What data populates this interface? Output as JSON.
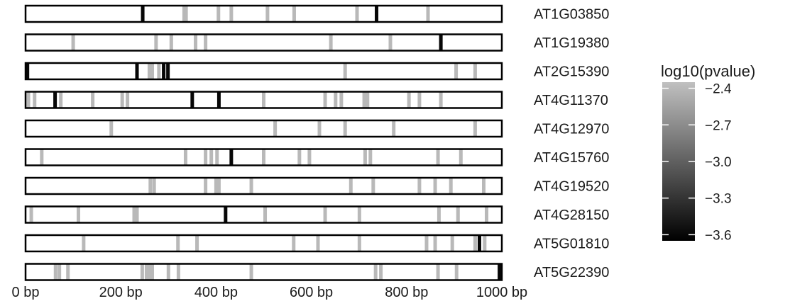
{
  "chart_data": {
    "type": "heatmap",
    "x_unit": "bp",
    "x_range": [
      0,
      1000
    ],
    "x_ticks": [
      {
        "value": 0,
        "label": "0 bp"
      },
      {
        "value": 200,
        "label": "200 bp"
      },
      {
        "value": 400,
        "label": "400 bp"
      },
      {
        "value": 600,
        "label": "600 bp"
      },
      {
        "value": 800,
        "label": "800 bp"
      },
      {
        "value": 1000,
        "label": "1000 bp"
      }
    ],
    "legend": {
      "title": "log10(pvalue)",
      "placement": "right",
      "range": [
        -3.65,
        -2.35
      ],
      "ticks": [
        {
          "value": -2.4,
          "label": "−2.4"
        },
        {
          "value": -2.7,
          "label": "−2.7"
        },
        {
          "value": -3.0,
          "label": "−3.0"
        },
        {
          "value": -3.3,
          "label": "−3.3"
        },
        {
          "value": -3.6,
          "label": "−3.6"
        }
      ],
      "color_high": "#c0c0c0",
      "color_low": "#000000"
    },
    "genes": [
      {
        "name": "AT1G03850",
        "marks": [
          {
            "pos": 246,
            "value": -3.6
          },
          {
            "pos": 333,
            "value": -2.4
          },
          {
            "pos": 337,
            "value": -2.4
          },
          {
            "pos": 405,
            "value": -2.4
          },
          {
            "pos": 432,
            "value": -2.4
          },
          {
            "pos": 508,
            "value": -2.4
          },
          {
            "pos": 564,
            "value": -2.4
          },
          {
            "pos": 696,
            "value": -2.4
          },
          {
            "pos": 737,
            "value": -3.6
          },
          {
            "pos": 845,
            "value": -2.4
          }
        ]
      },
      {
        "name": "AT1G19380",
        "marks": [
          {
            "pos": 100,
            "value": -2.4
          },
          {
            "pos": 274,
            "value": -2.4
          },
          {
            "pos": 306,
            "value": -2.4
          },
          {
            "pos": 357,
            "value": -2.4
          },
          {
            "pos": 378,
            "value": -2.4
          },
          {
            "pos": 641,
            "value": -2.4
          },
          {
            "pos": 766,
            "value": -2.4
          },
          {
            "pos": 872,
            "value": -3.6
          }
        ]
      },
      {
        "name": "AT2G15390",
        "marks": [
          {
            "pos": 4,
            "value": -3.6
          },
          {
            "pos": 234,
            "value": -3.6
          },
          {
            "pos": 260,
            "value": -2.4
          },
          {
            "pos": 266,
            "value": -2.4
          },
          {
            "pos": 280,
            "value": -2.4
          },
          {
            "pos": 290,
            "value": -3.6
          },
          {
            "pos": 299,
            "value": -3.6
          },
          {
            "pos": 671,
            "value": -2.4
          },
          {
            "pos": 904,
            "value": -2.4
          },
          {
            "pos": 944,
            "value": -2.4
          }
        ]
      },
      {
        "name": "AT4G11370",
        "marks": [
          {
            "pos": 6,
            "value": -2.4
          },
          {
            "pos": 19,
            "value": -2.4
          },
          {
            "pos": 62,
            "value": -3.6
          },
          {
            "pos": 74,
            "value": -2.4
          },
          {
            "pos": 141,
            "value": -2.4
          },
          {
            "pos": 203,
            "value": -2.4
          },
          {
            "pos": 214,
            "value": -2.4
          },
          {
            "pos": 350,
            "value": -3.6
          },
          {
            "pos": 406,
            "value": -3.6
          },
          {
            "pos": 500,
            "value": -2.4
          },
          {
            "pos": 629,
            "value": -2.4
          },
          {
            "pos": 651,
            "value": -2.4
          },
          {
            "pos": 663,
            "value": -2.4
          },
          {
            "pos": 711,
            "value": -2.4
          },
          {
            "pos": 718,
            "value": -2.4
          },
          {
            "pos": 805,
            "value": -2.4
          },
          {
            "pos": 827,
            "value": -2.4
          },
          {
            "pos": 872,
            "value": -2.4
          }
        ]
      },
      {
        "name": "AT4G12970",
        "marks": [
          {
            "pos": 180,
            "value": -2.4
          },
          {
            "pos": 524,
            "value": -2.4
          },
          {
            "pos": 617,
            "value": -2.4
          },
          {
            "pos": 671,
            "value": -2.4
          },
          {
            "pos": 773,
            "value": -2.4
          },
          {
            "pos": 944,
            "value": -2.4
          }
        ]
      },
      {
        "name": "AT4G15760",
        "marks": [
          {
            "pos": 34,
            "value": -2.4
          },
          {
            "pos": 336,
            "value": -2.4
          },
          {
            "pos": 378,
            "value": -2.4
          },
          {
            "pos": 390,
            "value": -2.4
          },
          {
            "pos": 402,
            "value": -2.4
          },
          {
            "pos": 432,
            "value": -3.6
          },
          {
            "pos": 500,
            "value": -2.4
          },
          {
            "pos": 575,
            "value": -2.4
          },
          {
            "pos": 596,
            "value": -2.4
          },
          {
            "pos": 713,
            "value": -2.4
          },
          {
            "pos": 724,
            "value": -2.4
          },
          {
            "pos": 866,
            "value": -2.4
          },
          {
            "pos": 914,
            "value": -2.4
          }
        ]
      },
      {
        "name": "AT4G19520",
        "marks": [
          {
            "pos": 262,
            "value": -2.4
          },
          {
            "pos": 270,
            "value": -2.4
          },
          {
            "pos": 378,
            "value": -2.4
          },
          {
            "pos": 400,
            "value": -2.4
          },
          {
            "pos": 406,
            "value": -2.4
          },
          {
            "pos": 474,
            "value": -2.4
          },
          {
            "pos": 683,
            "value": -2.4
          },
          {
            "pos": 730,
            "value": -2.4
          },
          {
            "pos": 827,
            "value": -2.4
          },
          {
            "pos": 860,
            "value": -2.4
          },
          {
            "pos": 893,
            "value": -2.4
          },
          {
            "pos": 962,
            "value": -2.4
          }
        ]
      },
      {
        "name": "AT4G28150",
        "marks": [
          {
            "pos": 12,
            "value": -2.4
          },
          {
            "pos": 111,
            "value": -2.4
          },
          {
            "pos": 228,
            "value": -2.4
          },
          {
            "pos": 234,
            "value": -2.4
          },
          {
            "pos": 420,
            "value": -3.6
          },
          {
            "pos": 503,
            "value": -2.4
          },
          {
            "pos": 629,
            "value": -2.4
          },
          {
            "pos": 701,
            "value": -2.4
          },
          {
            "pos": 868,
            "value": -2.4
          },
          {
            "pos": 908,
            "value": -2.4
          },
          {
            "pos": 968,
            "value": -2.4
          }
        ]
      },
      {
        "name": "AT5G01810",
        "marks": [
          {
            "pos": 122,
            "value": -2.4
          },
          {
            "pos": 320,
            "value": -2.4
          },
          {
            "pos": 360,
            "value": -2.4
          },
          {
            "pos": 563,
            "value": -2.4
          },
          {
            "pos": 614,
            "value": -2.4
          },
          {
            "pos": 701,
            "value": -2.4
          },
          {
            "pos": 842,
            "value": -2.4
          },
          {
            "pos": 860,
            "value": -2.4
          },
          {
            "pos": 896,
            "value": -2.4
          },
          {
            "pos": 944,
            "value": -2.4
          },
          {
            "pos": 953,
            "value": -3.6
          },
          {
            "pos": 964,
            "value": -2.4
          }
        ]
      },
      {
        "name": "AT5G22390",
        "marks": [
          {
            "pos": 63,
            "value": -2.4
          },
          {
            "pos": 71,
            "value": -2.4
          },
          {
            "pos": 89,
            "value": -2.4
          },
          {
            "pos": 245,
            "value": -2.4
          },
          {
            "pos": 254,
            "value": -2.4
          },
          {
            "pos": 260,
            "value": -2.4
          },
          {
            "pos": 266,
            "value": -2.4
          },
          {
            "pos": 300,
            "value": -2.4
          },
          {
            "pos": 321,
            "value": -2.4
          },
          {
            "pos": 474,
            "value": -2.4
          },
          {
            "pos": 735,
            "value": -2.4
          },
          {
            "pos": 746,
            "value": -2.4
          },
          {
            "pos": 866,
            "value": -2.4
          },
          {
            "pos": 905,
            "value": -2.4
          },
          {
            "pos": 995,
            "value": -3.6
          }
        ]
      }
    ]
  }
}
